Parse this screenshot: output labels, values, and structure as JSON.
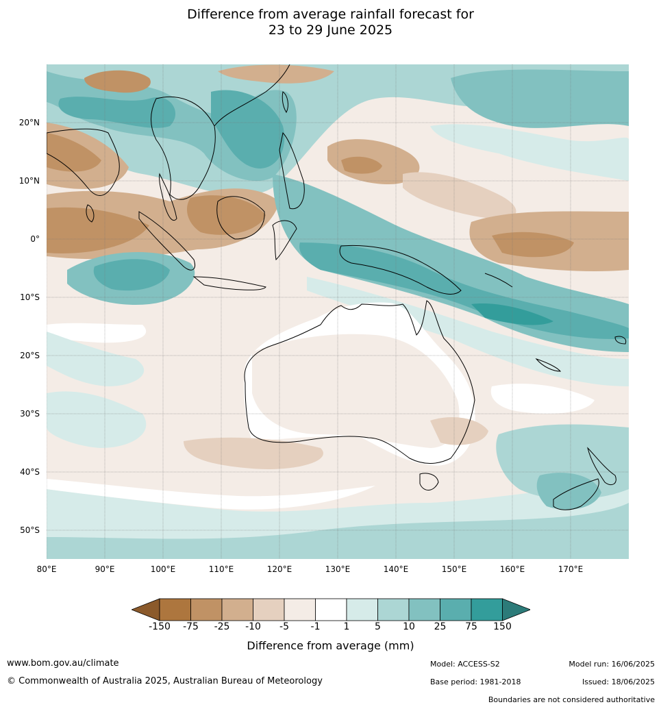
{
  "title_line1": "Difference from average rainfall forecast for",
  "title_line2": "23 to 29 June 2025",
  "lat_labels": [
    "20°N",
    "10°N",
    "0°",
    "10°S",
    "20°S",
    "30°S",
    "40°S",
    "50°S"
  ],
  "lon_labels": [
    "80°E",
    "90°E",
    "100°E",
    "110°E",
    "120°E",
    "130°E",
    "140°E",
    "150°E",
    "160°E",
    "170°E"
  ],
  "colorbar": {
    "ticks": [
      "-150",
      "-75",
      "-25",
      "-10",
      "-5",
      "-1",
      "1",
      "5",
      "10",
      "25",
      "75",
      "150"
    ],
    "colors": [
      "#8b5a2b",
      "#ad763e",
      "#c09265",
      "#d2af8e",
      "#e5d0bf",
      "#f4ece6",
      "#ffffff",
      "#d6ebe9",
      "#acd6d4",
      "#82c1c0",
      "#5aaeae",
      "#339d9b",
      "#2c7b79"
    ],
    "label": "Difference from average (mm)"
  },
  "footer": {
    "url": "www.bom.gov.au/climate",
    "copyright": "© Commonwealth of Australia 2025, Australian Bureau of Meteorology",
    "model": "Model: ACCESS-S2",
    "base_period": "Base period: 1981-2018",
    "model_run": "Model run: 16/06/2025",
    "issued": "Issued: 18/06/2025",
    "disclaimer": "Boundaries are not considered authoritative"
  }
}
